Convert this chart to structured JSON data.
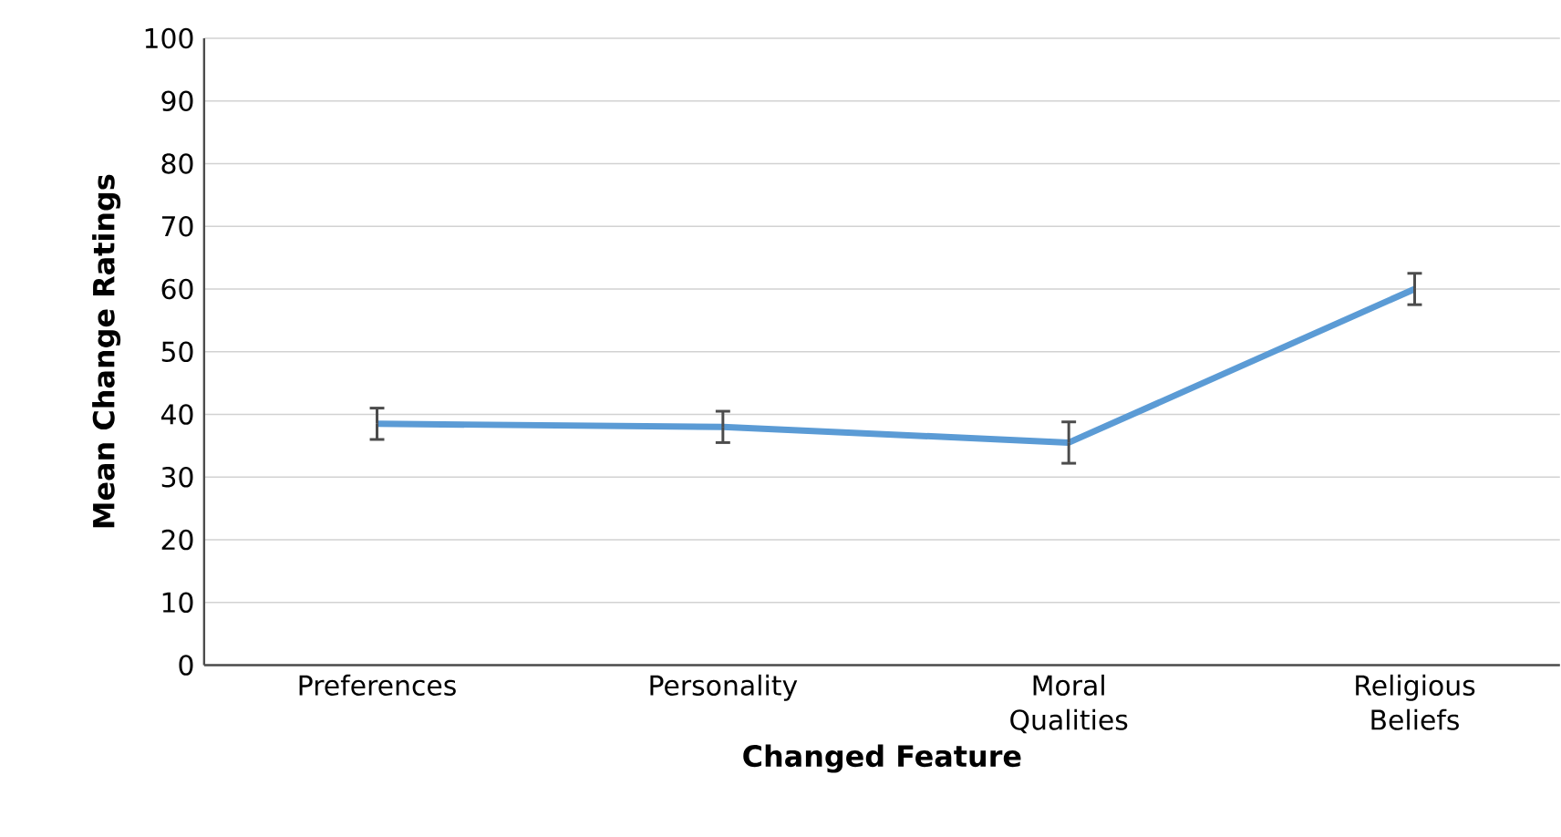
{
  "chart_data": {
    "type": "line",
    "xlabel": "Changed Feature",
    "ylabel": "Mean Change Ratings",
    "categories": [
      "Preferences",
      "Personality",
      "Moral Qualities",
      "Religious Beliefs"
    ],
    "values": [
      38.5,
      38,
      35.5,
      60
    ],
    "errors": [
      2.5,
      2.5,
      3.3,
      2.5
    ],
    "color": "#5b9bd5",
    "ylim": [
      0,
      100
    ],
    "yticks": [
      0,
      10,
      20,
      30,
      40,
      50,
      60,
      70,
      80,
      90,
      100
    ],
    "grid": "y",
    "marker": "none",
    "line_style": "solid"
  }
}
